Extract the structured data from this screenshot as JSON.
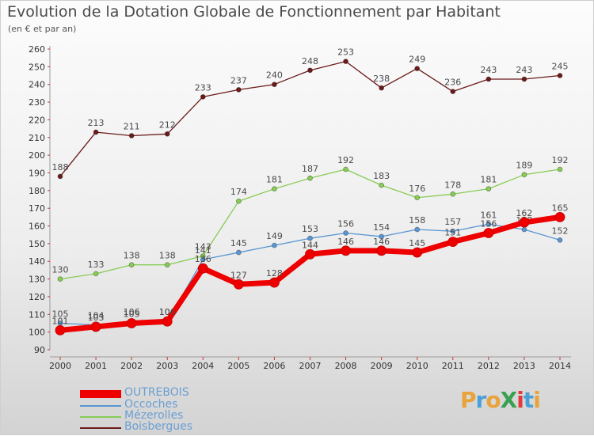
{
  "chart_data": {
    "type": "line",
    "title": "Evolution de la Dotation Globale de Fonctionnement par Habitant",
    "subtitle": "(en € et par an)",
    "x": [
      "2000",
      "2001",
      "2002",
      "2003",
      "2004",
      "2005",
      "2006",
      "2007",
      "2008",
      "2009",
      "2010",
      "2011",
      "2012",
      "2013",
      "2014"
    ],
    "ylim": [
      90,
      260
    ],
    "yticks": [
      90,
      100,
      110,
      120,
      130,
      140,
      150,
      160,
      170,
      180,
      190,
      200,
      210,
      220,
      230,
      240,
      250,
      260
    ],
    "grid": false,
    "series": [
      {
        "name": "Boisbergues",
        "color": "#6b1a1a",
        "values": [
          188,
          213,
          211,
          212,
          233,
          237,
          240,
          248,
          253,
          238,
          249,
          236,
          243,
          243,
          245
        ]
      },
      {
        "name": "Mézerolles",
        "color": "#88cc55",
        "values": [
          130,
          133,
          138,
          138,
          143,
          174,
          181,
          187,
          192,
          183,
          176,
          178,
          181,
          189,
          192
        ]
      },
      {
        "name": "Occoches",
        "color": "#5a96d2",
        "values": [
          105,
          104,
          106,
          106,
          141,
          145,
          149,
          153,
          156,
          154,
          158,
          157,
          161,
          158,
          152
        ]
      },
      {
        "name": "OUTREBOIS",
        "color": "#ee0000",
        "values": [
          101,
          103,
          105,
          106,
          136,
          127,
          128,
          144,
          146,
          146,
          145,
          151,
          156,
          162,
          165
        ]
      }
    ],
    "legend": [
      {
        "label": "OUTREBOIS",
        "color": "#ee0000"
      },
      {
        "label": "Occoches",
        "color": "#5a96d2"
      },
      {
        "label": "Mézerolles",
        "color": "#88cc55"
      },
      {
        "label": "Boisbergues",
        "color": "#6b1a1a"
      }
    ],
    "legend_position": "bottom-left"
  },
  "logo": {
    "text": "ProXiti",
    "letters": [
      {
        "ch": "P",
        "color": "#e8a33a"
      },
      {
        "ch": "r",
        "color": "#4aa0d8"
      },
      {
        "ch": "o",
        "color": "#e8a33a"
      },
      {
        "ch": "X",
        "color": "#3aa050"
      },
      {
        "ch": "i",
        "color": "#e03a3a"
      },
      {
        "ch": "t",
        "color": "#4aa0d8"
      },
      {
        "ch": "i",
        "color": "#e8a33a"
      }
    ]
  }
}
